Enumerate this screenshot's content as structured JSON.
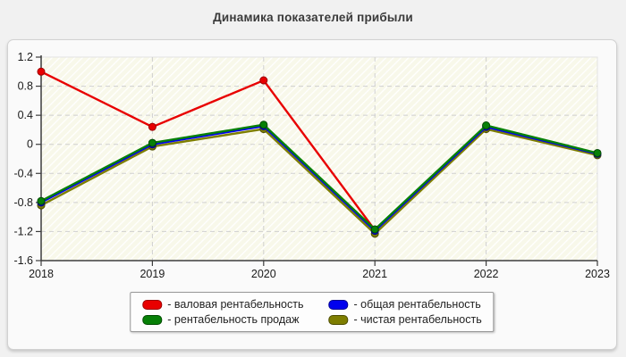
{
  "chart_data": {
    "type": "line",
    "title": "Динамика показателей прибыли",
    "x": [
      "2018",
      "2019",
      "2020",
      "2021",
      "2022",
      "2023"
    ],
    "xlabel": "",
    "ylabel": "",
    "ylim": [
      -1.6,
      1.2
    ],
    "y_ticks": [
      1.2,
      0.8,
      0.4,
      0,
      -0.4,
      -0.8,
      -1.2,
      -1.6
    ],
    "y_tick_labels": [
      "1.2",
      "0.8",
      "0.4",
      "0",
      "-0.4",
      "-0.8",
      "-1.2",
      "-1.6"
    ],
    "grid": true,
    "grid_style": "dashed",
    "legend_position": "bottom",
    "plot_background": "hatched-ivory",
    "colors": {
      "axis": "#3c3c3c",
      "grid": "#cfcfcf",
      "panel_background": "#fafafa",
      "page_background": "#f1f1f1",
      "plot_fill": "#f8f8ea",
      "hatch_line": "#ffffff"
    },
    "series": [
      {
        "name": "валовая рентабельность",
        "legend_label": "- валовая рентабельность",
        "color": "#e80000",
        "marker_stroke": "#9b0000",
        "values": [
          1.0,
          0.24,
          0.88,
          -1.18
        ]
      },
      {
        "name": "общая рентабельность",
        "legend_label": "- общая рентабельность",
        "color": "#0000ee",
        "marker_stroke": "#000090",
        "values": [
          -0.8,
          0.0,
          0.25,
          -1.19,
          0.24,
          -0.13
        ]
      },
      {
        "name": "рентабельность продаж",
        "legend_label": "- рентабельность продаж",
        "color": "#078007",
        "marker_stroke": "#004a00",
        "values": [
          -0.78,
          0.02,
          0.27,
          -1.17,
          0.26,
          -0.12
        ]
      },
      {
        "name": "чистая рентабельность",
        "legend_label": "- чистая рентабельность",
        "color": "#7e7e00",
        "marker_stroke": "#4c4c00",
        "values": [
          -0.84,
          -0.03,
          0.21,
          -1.23,
          0.21,
          -0.15
        ]
      }
    ]
  }
}
